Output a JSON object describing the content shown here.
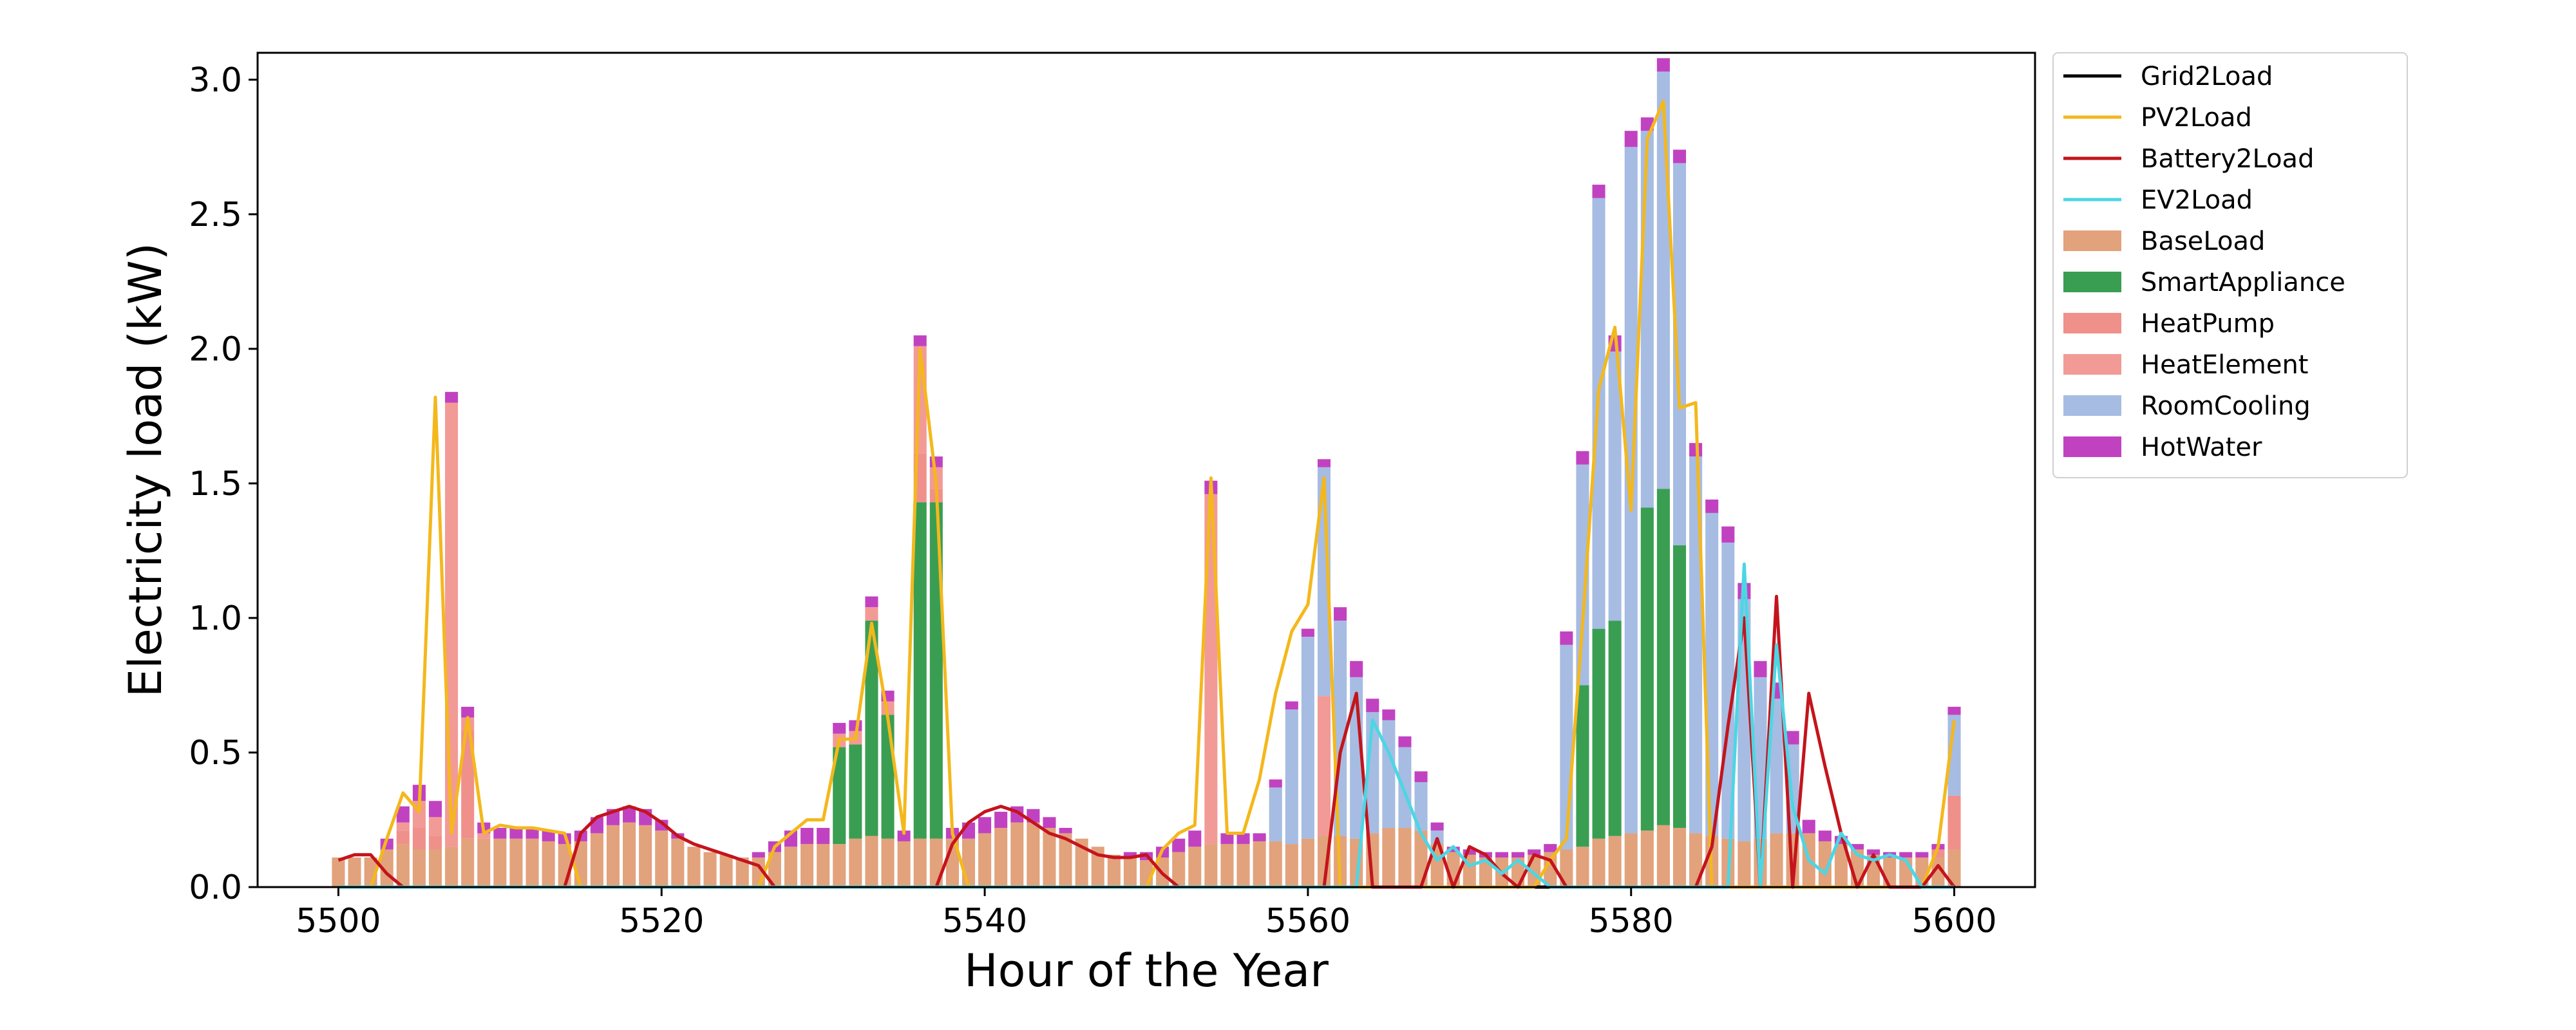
{
  "chart_data": {
    "type": "bar",
    "xlabel": "Hour of the Year",
    "ylabel": "Electricity load (kW)",
    "xlim": [
      5495,
      5605
    ],
    "ylim": [
      0,
      3.1
    ],
    "xticks": [
      "5500",
      "5520",
      "5540",
      "5560",
      "5580",
      "5600"
    ],
    "yticks": [
      "0.0",
      "0.5",
      "1.0",
      "1.5",
      "2.0",
      "2.5",
      "3.0"
    ],
    "grid": false,
    "legend_position": "outside-top-right",
    "x_start": 5500,
    "stacked_series": [
      {
        "name": "BaseLoad",
        "color": "#E2A27C",
        "values": [
          0.11,
          0.11,
          0.11,
          0.14,
          0.16,
          0.14,
          0.14,
          0.15,
          0.18,
          0.18,
          0.18,
          0.18,
          0.18,
          0.17,
          0.16,
          0.17,
          0.2,
          0.23,
          0.24,
          0.23,
          0.21,
          0.18,
          0.15,
          0.13,
          0.12,
          0.11,
          0.11,
          0.13,
          0.15,
          0.16,
          0.16,
          0.16,
          0.18,
          0.19,
          0.18,
          0.17,
          0.18,
          0.18,
          0.18,
          0.18,
          0.2,
          0.22,
          0.24,
          0.24,
          0.22,
          0.2,
          0.18,
          0.15,
          0.12,
          0.11,
          0.1,
          0.11,
          0.13,
          0.15,
          0.16,
          0.16,
          0.16,
          0.17,
          0.17,
          0.16,
          0.18,
          0.19,
          0.19,
          0.18,
          0.2,
          0.22,
          0.22,
          0.21,
          0.16,
          0.13,
          0.12,
          0.11,
          0.11,
          0.11,
          0.12,
          0.13,
          0.14,
          0.15,
          0.18,
          0.19,
          0.2,
          0.21,
          0.23,
          0.22,
          0.2,
          0.19,
          0.18,
          0.17,
          0.18,
          0.2,
          0.2,
          0.2,
          0.17,
          0.16,
          0.14,
          0.12,
          0.11,
          0.11,
          0.11,
          0.11,
          0.14
        ]
      },
      {
        "name": "SmartAppliance",
        "color": "#3A9E52",
        "values": [
          0,
          0,
          0,
          0,
          0,
          0,
          0,
          0,
          0,
          0,
          0,
          0,
          0,
          0,
          0,
          0,
          0,
          0,
          0,
          0,
          0,
          0,
          0,
          0,
          0,
          0,
          0,
          0,
          0,
          0,
          0,
          0.36,
          0.35,
          0.8,
          0.46,
          0,
          1.25,
          1.25,
          0,
          0,
          0,
          0,
          0,
          0,
          0,
          0,
          0,
          0,
          0,
          0,
          0,
          0,
          0,
          0,
          0,
          0,
          0,
          0,
          0,
          0,
          0,
          0,
          0,
          0,
          0,
          0,
          0,
          0,
          0,
          0,
          0,
          0,
          0,
          0,
          0,
          0,
          0,
          0.6,
          0.78,
          0.8,
          0,
          1.2,
          1.25,
          1.05,
          0,
          0,
          0,
          0,
          0,
          0,
          0,
          0,
          0,
          0,
          0,
          0,
          0,
          0,
          0,
          0,
          0
        ]
      },
      {
        "name": "HeatPump",
        "color": "#F0908A",
        "values": [
          0,
          0,
          0,
          0,
          0.05,
          0.08,
          0.05,
          0,
          0.4,
          0,
          0,
          0,
          0,
          0,
          0,
          0,
          0,
          0,
          0,
          0,
          0,
          0,
          0,
          0,
          0,
          0,
          0,
          0,
          0,
          0,
          0,
          0,
          0,
          0,
          0,
          0,
          0.18,
          0.05,
          0,
          0,
          0,
          0,
          0,
          0,
          0,
          0,
          0,
          0,
          0,
          0,
          0,
          0,
          0,
          0,
          0,
          0,
          0,
          0,
          0,
          0,
          0,
          0,
          0,
          0,
          0,
          0,
          0,
          0,
          0,
          0,
          0,
          0,
          0,
          0,
          0,
          0,
          0,
          0,
          0,
          0,
          0,
          0,
          0,
          0,
          0,
          0,
          0,
          0,
          0,
          0,
          0,
          0,
          0,
          0,
          0,
          0,
          0,
          0,
          0,
          0.03,
          0.2
        ]
      },
      {
        "name": "HeatElement",
        "color": "#F29A96",
        "values": [
          0,
          0,
          0,
          0,
          0.03,
          0.1,
          0.07,
          1.65,
          0.05,
          0.02,
          0,
          0,
          0,
          0,
          0,
          0,
          0,
          0,
          0,
          0,
          0,
          0,
          0,
          0,
          0,
          0,
          0,
          0,
          0,
          0,
          0,
          0.05,
          0.05,
          0.05,
          0.05,
          0,
          0.4,
          0.08,
          0,
          0,
          0,
          0,
          0,
          0,
          0,
          0,
          0,
          0,
          0,
          0,
          0,
          0,
          0,
          0,
          1.3,
          0,
          0,
          0,
          0,
          0,
          0,
          0.52,
          0,
          0,
          0,
          0,
          0,
          0,
          0,
          0,
          0,
          0,
          0,
          0,
          0,
          0,
          0,
          0,
          0,
          0,
          0,
          0,
          0,
          0,
          0,
          0,
          0,
          0,
          0,
          0,
          0,
          0,
          0,
          0,
          0,
          0,
          0,
          0,
          0,
          0,
          0
        ]
      },
      {
        "name": "RoomCooling",
        "color": "#A6BCE2",
        "values": [
          0,
          0,
          0,
          0,
          0,
          0,
          0,
          0,
          0,
          0,
          0,
          0,
          0,
          0,
          0,
          0,
          0,
          0,
          0,
          0,
          0,
          0,
          0,
          0,
          0,
          0,
          0,
          0,
          0,
          0,
          0,
          0,
          0,
          0,
          0,
          0,
          0,
          0,
          0,
          0,
          0,
          0,
          0,
          0,
          0,
          0,
          0,
          0,
          0,
          0,
          0,
          0,
          0,
          0,
          0,
          0,
          0,
          0,
          0.2,
          0.5,
          0.75,
          0.85,
          0.8,
          0.6,
          0.45,
          0.4,
          0.3,
          0.18,
          0.05,
          0,
          0,
          0,
          0,
          0,
          0,
          0,
          0.76,
          0.82,
          1.6,
          1.0,
          2.55,
          1.4,
          1.55,
          1.42,
          1.4,
          1.2,
          1.1,
          0.9,
          0.6,
          0.5,
          0.33,
          0,
          0,
          0,
          0,
          0,
          0,
          0,
          0,
          0,
          0.3
        ]
      },
      {
        "name": "HotWater",
        "color": "#C142C1",
        "values": [
          0,
          0,
          0,
          0.04,
          0.06,
          0.06,
          0.06,
          0.04,
          0.04,
          0.04,
          0.04,
          0.04,
          0.04,
          0.04,
          0.04,
          0.04,
          0.06,
          0.06,
          0.06,
          0.06,
          0.04,
          0.02,
          0,
          0,
          0,
          0,
          0.02,
          0.04,
          0.06,
          0.06,
          0.06,
          0.04,
          0.04,
          0.04,
          0.04,
          0.04,
          0.04,
          0.04,
          0.04,
          0.06,
          0.06,
          0.06,
          0.06,
          0.05,
          0.04,
          0.02,
          0,
          0,
          0,
          0.02,
          0.03,
          0.04,
          0.05,
          0.06,
          0.05,
          0.04,
          0.04,
          0.03,
          0.03,
          0.03,
          0.03,
          0.03,
          0.05,
          0.06,
          0.05,
          0.04,
          0.04,
          0.04,
          0.03,
          0.02,
          0.02,
          0.02,
          0.02,
          0.02,
          0.02,
          0.03,
          0.05,
          0.05,
          0.05,
          0.06,
          0.06,
          0.05,
          0.05,
          0.05,
          0.05,
          0.05,
          0.06,
          0.06,
          0.06,
          0.06,
          0.05,
          0.05,
          0.04,
          0.03,
          0.02,
          0.02,
          0.02,
          0.02,
          0.02,
          0.02,
          0.03
        ]
      }
    ],
    "line_series": [
      {
        "name": "Grid2Load",
        "color": "#000000",
        "values": [
          0,
          0,
          0,
          0,
          0,
          0,
          0,
          0,
          0,
          0,
          0,
          0,
          0,
          0,
          0,
          0,
          0,
          0,
          0,
          0,
          0,
          0,
          0,
          0,
          0,
          0,
          0,
          0,
          0,
          0,
          0,
          0,
          0,
          0,
          0,
          0,
          0,
          0,
          0,
          0,
          0,
          0,
          0,
          0,
          0,
          0,
          0,
          0,
          0,
          0,
          0,
          0,
          0,
          0,
          0,
          0,
          0,
          0,
          0,
          0,
          0,
          0,
          0,
          0,
          0,
          0,
          0,
          0,
          0,
          0,
          0,
          0,
          0,
          0,
          0,
          0,
          0,
          0,
          0,
          0,
          0,
          0,
          0,
          0,
          0,
          0,
          0,
          0,
          0,
          0,
          0,
          0,
          0,
          0,
          0,
          0,
          0,
          0,
          0,
          0,
          0
        ]
      },
      {
        "name": "PV2Load",
        "color": "#F4B81C",
        "values": [
          0,
          0,
          0,
          0.18,
          0.35,
          0.28,
          1.82,
          0.2,
          0.63,
          0.2,
          0.23,
          0.22,
          0.22,
          0.21,
          0.2,
          0,
          0,
          0,
          0,
          0,
          0,
          0,
          0,
          0,
          0,
          0,
          0,
          0.15,
          0.2,
          0.25,
          0.25,
          0.55,
          0.55,
          0.98,
          0.63,
          0.2,
          2.0,
          1.5,
          0.2,
          0,
          0,
          0,
          0,
          0,
          0,
          0,
          0,
          0,
          0,
          0,
          0,
          0.14,
          0.2,
          0.23,
          1.52,
          0.2,
          0.2,
          0.4,
          0.72,
          0.95,
          1.05,
          1.52,
          0,
          0,
          0,
          0,
          0,
          0,
          0,
          0,
          0,
          0,
          0,
          0,
          0,
          0.1,
          0.18,
          0.98,
          1.85,
          2.08,
          1.4,
          2.78,
          2.92,
          1.78,
          1.8,
          0,
          0,
          0,
          0,
          0,
          0,
          0,
          0,
          0,
          0,
          0,
          0,
          0,
          0,
          0.15,
          0.62
        ]
      },
      {
        "name": "Battery2Load",
        "color": "#C4141C",
        "values": [
          0.1,
          0.12,
          0.12,
          0.05,
          0,
          0,
          0,
          0,
          0,
          0,
          0,
          0,
          0,
          0,
          0,
          0.2,
          0.26,
          0.28,
          0.3,
          0.28,
          0.24,
          0.19,
          0.16,
          0.14,
          0.12,
          0.1,
          0.08,
          0,
          0,
          0,
          0,
          0,
          0,
          0,
          0,
          0,
          0,
          0,
          0.16,
          0.24,
          0.28,
          0.3,
          0.28,
          0.24,
          0.2,
          0.18,
          0.15,
          0.12,
          0.11,
          0.11,
          0.12,
          0.05,
          0,
          0,
          0,
          0,
          0,
          0,
          0,
          0,
          0,
          0,
          0.5,
          0.72,
          0,
          0,
          0,
          0,
          0.18,
          0,
          0.15,
          0.12,
          0.05,
          0,
          0.12,
          0.1,
          0,
          0,
          0,
          0,
          0,
          0,
          0,
          0,
          0,
          0.15,
          0.6,
          1.0,
          0,
          1.08,
          0,
          0.72,
          0.45,
          0.2,
          0,
          0.12,
          0,
          0,
          0,
          0.08,
          0
        ]
      },
      {
        "name": "EV2Load",
        "color": "#4CD6E4",
        "values": [
          0,
          0,
          0,
          0,
          0,
          0,
          0,
          0,
          0,
          0,
          0,
          0,
          0,
          0,
          0,
          0,
          0,
          0,
          0,
          0,
          0,
          0,
          0,
          0,
          0,
          0,
          0,
          0,
          0,
          0,
          0,
          0,
          0,
          0,
          0,
          0,
          0,
          0,
          0,
          0,
          0,
          0,
          0,
          0,
          0,
          0,
          0,
          0,
          0,
          0,
          0,
          0,
          0,
          0,
          0,
          0,
          0,
          0,
          0,
          0,
          0,
          0,
          0,
          0,
          0.62,
          0.5,
          0.35,
          0.2,
          0.1,
          0.15,
          0.08,
          0.1,
          0.05,
          0.1,
          0.05,
          0,
          0,
          0,
          0,
          0,
          0,
          0,
          0,
          0,
          0,
          0,
          0,
          1.2,
          0,
          0.9,
          0.3,
          0.1,
          0.05,
          0.2,
          0.12,
          0.1,
          0.12,
          0.1,
          0,
          0,
          0
        ]
      }
    ],
    "legend": [
      {
        "label": "Grid2Load",
        "kind": "line",
        "color": "#000000"
      },
      {
        "label": "PV2Load",
        "kind": "line",
        "color": "#F4B81C"
      },
      {
        "label": "Battery2Load",
        "kind": "line",
        "color": "#C4141C"
      },
      {
        "label": "EV2Load",
        "kind": "line",
        "color": "#4CD6E4"
      },
      {
        "label": "BaseLoad",
        "kind": "patch",
        "color": "#E2A27C"
      },
      {
        "label": "SmartAppliance",
        "kind": "patch",
        "color": "#3A9E52"
      },
      {
        "label": "HeatPump",
        "kind": "patch",
        "color": "#F0908A"
      },
      {
        "label": "HeatElement",
        "kind": "patch",
        "color": "#F29A96"
      },
      {
        "label": "RoomCooling",
        "kind": "patch",
        "color": "#A6BCE2"
      },
      {
        "label": "HotWater",
        "kind": "patch",
        "color": "#C142C1"
      }
    ]
  }
}
